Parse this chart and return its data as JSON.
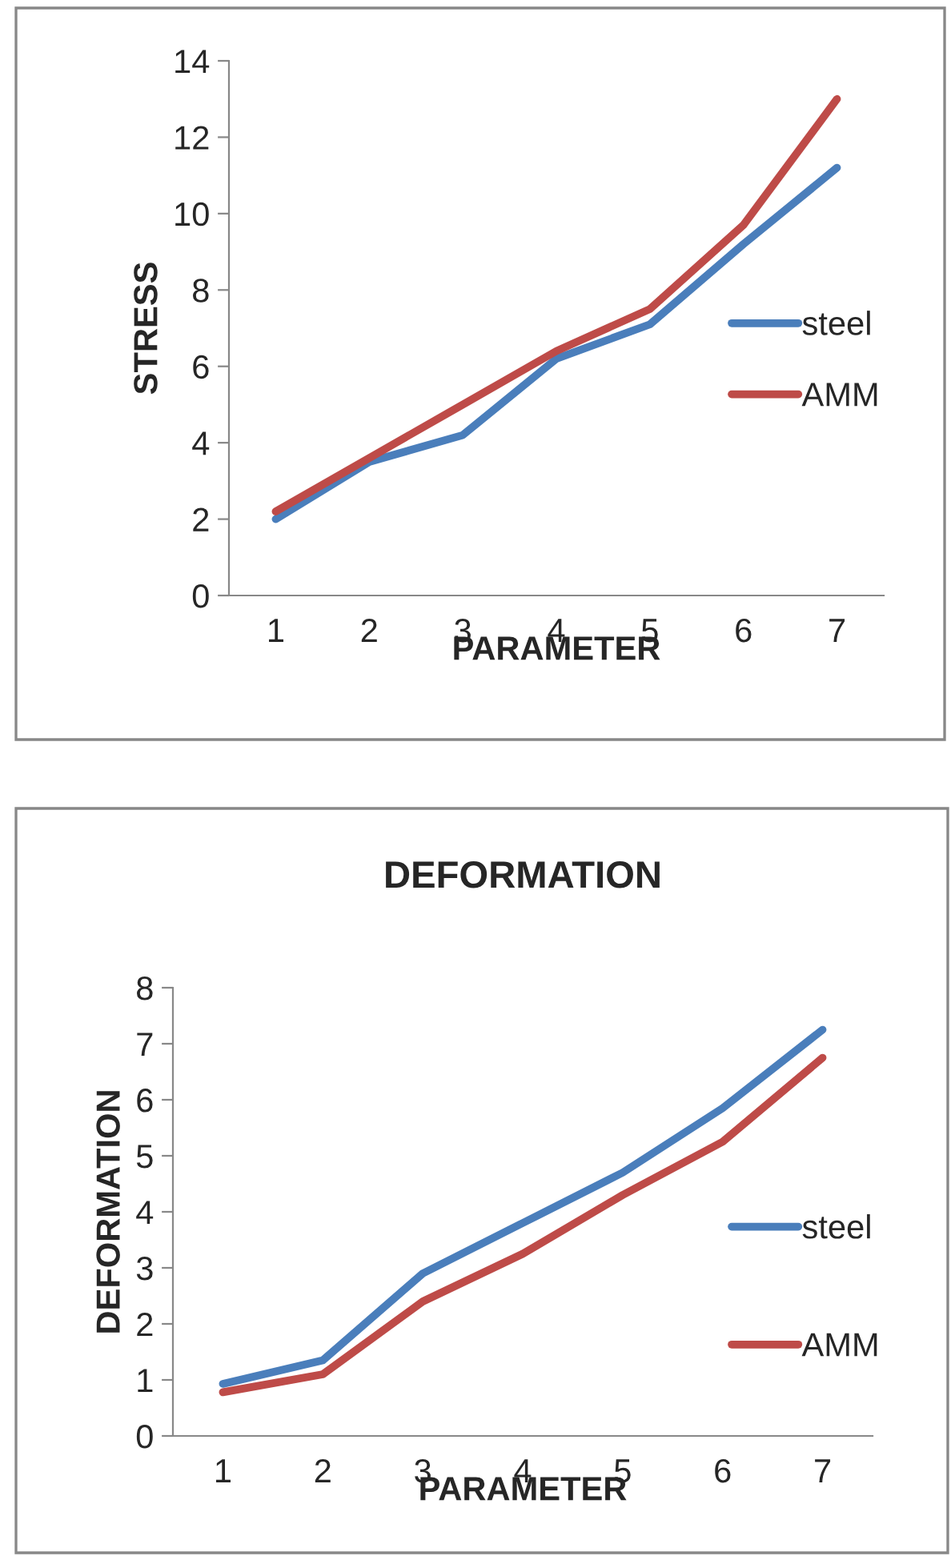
{
  "chart_data": [
    {
      "type": "line",
      "xlabel": "PARAMETER",
      "ylabel": "STRESS",
      "categories": [
        "1",
        "2",
        "3",
        "4",
        "5",
        "6",
        "7"
      ],
      "ylim": [
        0,
        14
      ],
      "yticks": [
        0,
        2,
        4,
        6,
        8,
        10,
        12,
        14
      ],
      "legend": "right",
      "grid": false,
      "series": [
        {
          "name": "steel",
          "color": "#4a7ebb",
          "values": [
            2.0,
            3.5,
            4.2,
            6.2,
            7.1,
            9.2,
            11.2
          ]
        },
        {
          "name": "AMM",
          "color": "#be4b48",
          "values": [
            2.2,
            3.6,
            5.0,
            6.4,
            7.5,
            9.7,
            13.0
          ]
        }
      ]
    },
    {
      "type": "line",
      "title": "DEFORMATION",
      "xlabel": "PARAMETER",
      "ylabel": "DEFORMATION",
      "categories": [
        "1",
        "2",
        "3",
        "4",
        "5",
        "6",
        "7"
      ],
      "ylim": [
        0,
        8
      ],
      "yticks": [
        0,
        1,
        2,
        3,
        4,
        5,
        6,
        7,
        8
      ],
      "legend": "right",
      "grid": false,
      "series": [
        {
          "name": "steel",
          "color": "#4a7ebb",
          "values": [
            0.93,
            1.35,
            2.9,
            3.8,
            4.7,
            5.85,
            7.25
          ]
        },
        {
          "name": "AMM",
          "color": "#be4b48",
          "values": [
            0.78,
            1.1,
            2.4,
            3.25,
            4.3,
            5.25,
            6.75
          ]
        }
      ]
    }
  ]
}
